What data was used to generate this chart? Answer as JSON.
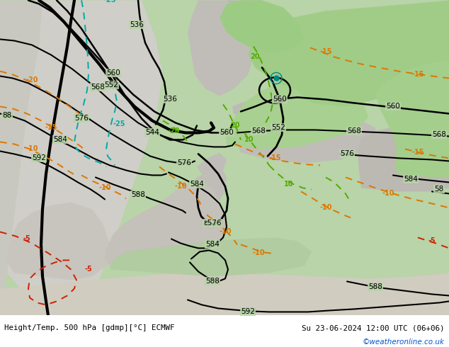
{
  "title_left": "Height/Temp. 500 hPa [gdmp][°C] ECMWF",
  "title_right": "Su 23-06-2024 12:00 UTC (06+06)",
  "watermark": "©weatheronline.co.uk",
  "fig_width": 6.34,
  "fig_height": 4.9,
  "dpi": 100,
  "map_bg": "#c8e0c0",
  "land_gray": "#c0bdb8",
  "land_green": "#b8d8a8",
  "sea_gray": "#c8c8c0",
  "border_color": "#888888"
}
